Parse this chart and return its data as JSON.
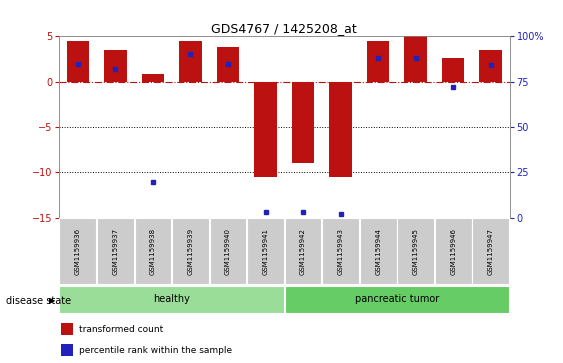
{
  "title": "GDS4767 / 1425208_at",
  "samples": [
    "GSM1159936",
    "GSM1159937",
    "GSM1159938",
    "GSM1159939",
    "GSM1159940",
    "GSM1159941",
    "GSM1159942",
    "GSM1159943",
    "GSM1159944",
    "GSM1159945",
    "GSM1159946",
    "GSM1159947"
  ],
  "bar_values": [
    4.5,
    3.5,
    0.8,
    4.5,
    3.8,
    -10.5,
    -9.0,
    -10.5,
    4.5,
    5.0,
    2.6,
    3.5
  ],
  "percentile_values": [
    85,
    82,
    20,
    90,
    85,
    3,
    3,
    2,
    88,
    88,
    72,
    84
  ],
  "bar_color": "#BB1111",
  "dot_color": "#2222BB",
  "groups": [
    {
      "label": "healthy",
      "start": 0,
      "end": 5,
      "color": "#99DD99"
    },
    {
      "label": "pancreatic tumor",
      "start": 6,
      "end": 11,
      "color": "#66CC66"
    }
  ],
  "ylim_left": [
    -15,
    5
  ],
  "ylim_right": [
    0,
    100
  ],
  "yticks_left": [
    5,
    0,
    -5,
    -10,
    -15
  ],
  "yticks_right": [
    100,
    75,
    50,
    25,
    0
  ],
  "hline_y": 0,
  "dotted_lines": [
    -5,
    -10
  ],
  "background_color": "#FFFFFF",
  "legend": [
    {
      "label": "transformed count",
      "color": "#BB1111"
    },
    {
      "label": "percentile rank within the sample",
      "color": "#2222BB"
    }
  ],
  "disease_state_label": "disease state",
  "bar_width": 0.6,
  "label_box_color": "#CCCCCC",
  "spine_color": "#888888"
}
